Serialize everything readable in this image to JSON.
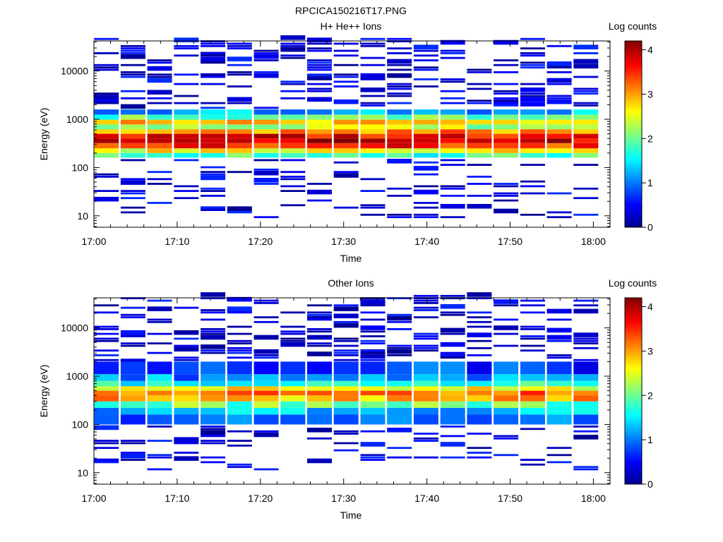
{
  "figure_title": "RPCICA150216T17.PNG",
  "chart_data": [
    {
      "type": "heatmap",
      "title": "H+ He++ Ions",
      "xlabel": "Time",
      "ylabel": "Energy (eV)",
      "yscale": "log",
      "ylim": [
        5.8,
        42000
      ],
      "xlim": [
        "17:00",
        "18:02"
      ],
      "x_ticks": [
        "17:00",
        "17:10",
        "17:20",
        "17:30",
        "17:40",
        "17:50",
        "18:00"
      ],
      "y_ticks": [
        "10",
        "100",
        "1000",
        "10000"
      ],
      "colorbar": {
        "label": "Log counts",
        "range": [
          0,
          4.2
        ],
        "ticks": [
          "0",
          "1",
          "2",
          "3",
          "4"
        ]
      },
      "time_bins_min": [
        1.5,
        4.7,
        7.9,
        11.1,
        14.3,
        17.5,
        20.7,
        23.9,
        27.1,
        30.3,
        33.5,
        36.7,
        39.9,
        43.1,
        46.3,
        49.5,
        52.7,
        55.9,
        59.1
      ],
      "spectrum": [
        {
          "energy_range_eV": [
            160,
            200
          ],
          "log_counts": 1.8
        },
        {
          "energy_range_eV": [
            200,
            250
          ],
          "log_counts": 2.6
        },
        {
          "energy_range_eV": [
            250,
            320
          ],
          "log_counts": 3.5
        },
        {
          "energy_range_eV": [
            320,
            400
          ],
          "log_counts": 3.9
        },
        {
          "energy_range_eV": [
            400,
            500
          ],
          "log_counts": 3.7
        },
        {
          "energy_range_eV": [
            500,
            620
          ],
          "log_counts": 3.1
        },
        {
          "energy_range_eV": [
            620,
            780
          ],
          "log_counts": 2.3
        },
        {
          "energy_range_eV": [
            780,
            980
          ],
          "log_counts": 2.8
        },
        {
          "energy_range_eV": [
            980,
            1250
          ],
          "log_counts": 1.9
        },
        {
          "energy_range_eV": [
            1250,
            1600
          ],
          "log_counts": 1.2
        }
      ],
      "sparse_counts": "scattered single counts (log counts 0-0.6) from 8 eV to 40000 eV"
    },
    {
      "type": "heatmap",
      "title": "Other Ions",
      "xlabel": "Time",
      "ylabel": "Energy (eV)",
      "yscale": "log",
      "ylim": [
        5.8,
        42000
      ],
      "xlim": [
        "17:00",
        "18:02"
      ],
      "x_ticks": [
        "17:00",
        "17:10",
        "17:20",
        "17:30",
        "17:40",
        "17:50",
        "18:00"
      ],
      "y_ticks": [
        "10",
        "100",
        "1000",
        "10000"
      ],
      "colorbar": {
        "label": "Log counts",
        "range": [
          0,
          4.2
        ],
        "ticks": [
          "0",
          "1",
          "2",
          "3",
          "4"
        ]
      },
      "time_bins_min": [
        1.5,
        4.7,
        7.9,
        11.1,
        14.3,
        17.5,
        20.7,
        23.9,
        27.1,
        30.3,
        33.5,
        36.7,
        39.9,
        43.1,
        46.3,
        49.5,
        52.7,
        55.9,
        59.1
      ],
      "spectrum": [
        {
          "energy_range_eV": [
            100,
            160
          ],
          "log_counts": 1.0
        },
        {
          "energy_range_eV": [
            160,
            220
          ],
          "log_counts": 1.3
        },
        {
          "energy_range_eV": [
            220,
            300
          ],
          "log_counts": 2.0
        },
        {
          "energy_range_eV": [
            300,
            400
          ],
          "log_counts": 2.9
        },
        {
          "energy_range_eV": [
            400,
            500
          ],
          "log_counts": 3.2
        },
        {
          "energy_range_eV": [
            500,
            620
          ],
          "log_counts": 2.6
        },
        {
          "energy_range_eV": [
            620,
            800
          ],
          "log_counts": 1.7
        },
        {
          "energy_range_eV": [
            800,
            1100
          ],
          "log_counts": 1.1
        },
        {
          "energy_range_eV": [
            1100,
            2000
          ],
          "log_counts": 0.7
        }
      ],
      "sparse_counts": "scattered single counts (log counts 0-0.6) from 10 eV to 40000 eV"
    }
  ]
}
